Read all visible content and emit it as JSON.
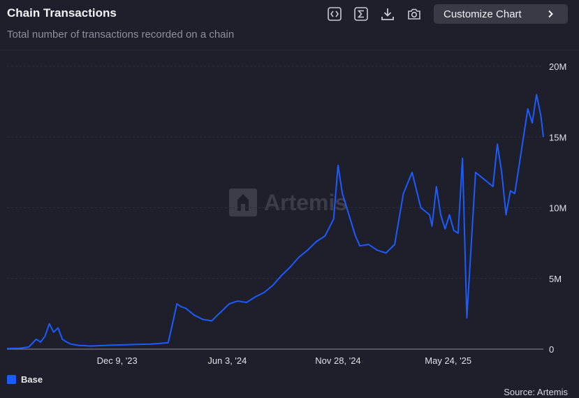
{
  "header": {
    "title": "Chain Transactions",
    "subtitle": "Total number of transactions recorded on a chain",
    "customize_label": "Customize Chart"
  },
  "toolbar": {
    "icons": [
      "code-icon",
      "sigma-icon",
      "download-icon",
      "camera-icon"
    ]
  },
  "watermark": {
    "text": "Artemis"
  },
  "legend": {
    "label": "Base",
    "color": "#1a5cff"
  },
  "source": "Source: Artemis",
  "chart_data": {
    "type": "line",
    "title": "Chain Transactions",
    "ylim": [
      0,
      20000000
    ],
    "y_ticks": [
      "0",
      "5M",
      "10M",
      "15M",
      "20M"
    ],
    "x_tick_labels": [
      "Dec 9, '23",
      "Jun 3, '24",
      "Nov 28, '24",
      "May 24, '25"
    ],
    "grid": true,
    "legend_position": "bottom-left",
    "series": [
      {
        "name": "Base",
        "color": "#1a5cff",
        "x": [
          "2023-06-15",
          "2023-07-05",
          "2023-07-20",
          "2023-08-01",
          "2023-08-08",
          "2023-08-15",
          "2023-08-22",
          "2023-08-29",
          "2023-09-05",
          "2023-09-12",
          "2023-09-19",
          "2023-09-26",
          "2023-10-03",
          "2023-10-10",
          "2023-10-17",
          "2023-10-24",
          "2023-10-31",
          "2023-11-15",
          "2023-12-01",
          "2023-12-20",
          "2024-01-10",
          "2024-01-31",
          "2024-02-15",
          "2024-02-29",
          "2024-03-07",
          "2024-03-14",
          "2024-03-21",
          "2024-03-28",
          "2024-04-11",
          "2024-04-25",
          "2024-05-09",
          "2024-05-23",
          "2024-06-06",
          "2024-06-20",
          "2024-07-04",
          "2024-07-18",
          "2024-08-01",
          "2024-08-15",
          "2024-08-29",
          "2024-09-12",
          "2024-09-26",
          "2024-10-10",
          "2024-10-24",
          "2024-11-07",
          "2024-11-21",
          "2024-11-28",
          "2024-12-05",
          "2024-12-12",
          "2024-12-19",
          "2024-12-26",
          "2025-01-02",
          "2025-01-16",
          "2025-01-30",
          "2025-02-13",
          "2025-02-27",
          "2025-03-13",
          "2025-03-27",
          "2025-04-10",
          "2025-04-24",
          "2025-04-28",
          "2025-05-05",
          "2025-05-12",
          "2025-05-19",
          "2025-05-26",
          "2025-06-02",
          "2025-06-09",
          "2025-06-16",
          "2025-06-23",
          "2025-07-07",
          "2025-07-21",
          "2025-08-04",
          "2025-08-11",
          "2025-08-18",
          "2025-08-25",
          "2025-09-01",
          "2025-09-08",
          "2025-09-15",
          "2025-09-22",
          "2025-09-29",
          "2025-10-06",
          "2025-10-13",
          "2025-10-20",
          "2025-10-24"
        ],
        "values": [
          50000,
          60000,
          150000,
          700000,
          500000,
          900000,
          1800000,
          1200000,
          1500000,
          700000,
          500000,
          350000,
          300000,
          250000,
          250000,
          220000,
          220000,
          250000,
          280000,
          300000,
          330000,
          350000,
          400000,
          450000,
          1800000,
          3200000,
          3000000,
          2900000,
          2400000,
          2100000,
          2000000,
          2600000,
          3200000,
          3400000,
          3300000,
          3700000,
          4000000,
          4500000,
          5200000,
          5800000,
          6500000,
          7000000,
          7600000,
          8000000,
          9200000,
          13000000,
          11000000,
          10000000,
          9000000,
          8000000,
          7300000,
          7400000,
          7000000,
          6800000,
          7400000,
          11000000,
          12500000,
          10000000,
          9500000,
          8700000,
          11500000,
          9500000,
          8500000,
          9500000,
          8400000,
          8200000,
          13500000,
          2200000,
          12500000,
          12000000,
          11500000,
          14500000,
          12500000,
          9500000,
          11200000,
          11000000,
          13000000,
          15000000,
          17000000,
          16000000,
          18000000,
          16500000,
          15000000
        ]
      }
    ]
  }
}
